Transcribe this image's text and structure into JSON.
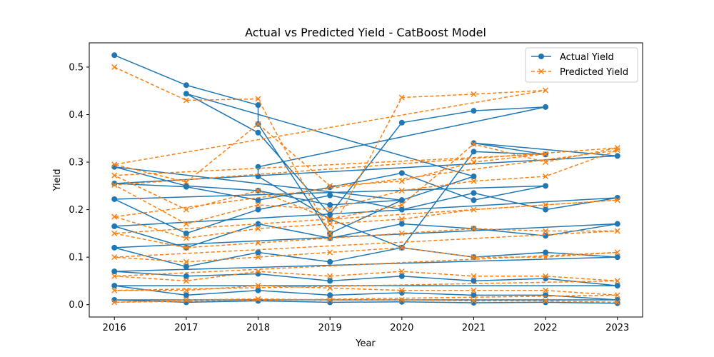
{
  "chart_data": {
    "type": "line",
    "title": "Actual vs Predicted Yield - CatBoost Model",
    "xlabel": "Year",
    "ylabel": "Yield",
    "xlim": [
      2015.65,
      2023.35
    ],
    "ylim": [
      -0.026,
      0.551
    ],
    "x_ticks": [
      "2016",
      "2017",
      "2018",
      "2019",
      "2020",
      "2021",
      "2022",
      "2023"
    ],
    "y_ticks": [
      "0.0",
      "0.1",
      "0.2",
      "0.3",
      "0.4",
      "0.5"
    ],
    "grid": false,
    "legend_position": "top-right",
    "series": [
      {
        "name": "Actual Yield",
        "color": "#1f77b4",
        "marker": "circle",
        "linestyle": "solid",
        "points": [
          [
            2016,
            0.525
          ],
          [
            2017,
            0.462
          ],
          [
            2018,
            0.42
          ],
          [
            2018,
            0.38
          ],
          [
            2019,
            0.15
          ],
          [
            2020,
            0.22
          ],
          [
            2016,
            0.29
          ],
          [
            2017,
            0.25
          ],
          [
            2018,
            0.24
          ],
          [
            2019,
            0.21
          ],
          [
            2020,
            0.22
          ],
          [
            2021,
            0.27
          ],
          [
            2017,
            0.444
          ],
          [
            2018,
            0.362
          ],
          [
            2019,
            0.19
          ],
          [
            2020,
            0.383
          ],
          [
            2021,
            0.408
          ],
          [
            2022,
            0.416
          ],
          [
            2018,
            0.29
          ],
          [
            2018,
            0.27
          ],
          [
            2019,
            0.18
          ],
          [
            2020,
            0.12
          ],
          [
            2021,
            0.322
          ],
          [
            2022,
            0.316
          ],
          [
            2021,
            0.34
          ],
          [
            2023,
            0.313
          ],
          [
            2016,
            0.255
          ],
          [
            2017,
            0.248
          ],
          [
            2018,
            0.22
          ],
          [
            2019,
            0.247
          ],
          [
            2020,
            0.277
          ],
          [
            2021,
            0.22
          ],
          [
            2022,
            0.25
          ],
          [
            2016,
            0.222
          ],
          [
            2017,
            0.15
          ],
          [
            2018,
            0.2
          ],
          [
            2019,
            0.23
          ],
          [
            2020,
            0.2
          ],
          [
            2021,
            0.235
          ],
          [
            2022,
            0.2
          ],
          [
            2023,
            0.225
          ],
          [
            2016,
            0.165
          ],
          [
            2017,
            0.12
          ],
          [
            2018,
            0.17
          ],
          [
            2019,
            0.14
          ],
          [
            2020,
            0.17
          ],
          [
            2021,
            0.16
          ],
          [
            2022,
            0.145
          ],
          [
            2023,
            0.17
          ],
          [
            2016,
            0.12
          ],
          [
            2017,
            0.08
          ],
          [
            2018,
            0.11
          ],
          [
            2019,
            0.09
          ],
          [
            2020,
            0.12
          ],
          [
            2021,
            0.1
          ],
          [
            2022,
            0.11
          ],
          [
            2023,
            0.1
          ],
          [
            2016,
            0.07
          ],
          [
            2017,
            0.06
          ],
          [
            2018,
            0.065
          ],
          [
            2019,
            0.05
          ],
          [
            2020,
            0.06
          ],
          [
            2021,
            0.05
          ],
          [
            2022,
            0.055
          ],
          [
            2023,
            0.04
          ],
          [
            2016,
            0.04
          ],
          [
            2017,
            0.02
          ],
          [
            2018,
            0.03
          ],
          [
            2019,
            0.02
          ],
          [
            2020,
            0.025
          ],
          [
            2021,
            0.02
          ],
          [
            2022,
            0.02
          ],
          [
            2023,
            0.01
          ],
          [
            2016,
            0.01
          ],
          [
            2017,
            0.005
          ],
          [
            2018,
            0.008
          ],
          [
            2019,
            0.005
          ],
          [
            2020,
            0.006
          ],
          [
            2021,
            0.004
          ],
          [
            2022,
            0.005
          ],
          [
            2023,
            0.003
          ]
        ]
      },
      {
        "name": "Predicted Yield",
        "color": "#ff7f0e",
        "marker": "x",
        "linestyle": "dashed",
        "points": [
          [
            2016,
            0.5
          ],
          [
            2017,
            0.43
          ],
          [
            2018,
            0.433
          ],
          [
            2019,
            0.15
          ],
          [
            2020,
            0.436
          ],
          [
            2021,
            0.443
          ],
          [
            2022,
            0.451
          ],
          [
            2016,
            0.295
          ],
          [
            2017,
            0.258
          ],
          [
            2018,
            0.38
          ],
          [
            2019,
            0.25
          ],
          [
            2020,
            0.26
          ],
          [
            2021,
            0.3
          ],
          [
            2022,
            0.317
          ],
          [
            2016,
            0.272
          ],
          [
            2017,
            0.2
          ],
          [
            2018,
            0.24
          ],
          [
            2019,
            0.18
          ],
          [
            2020,
            0.21
          ],
          [
            2021,
            0.338
          ],
          [
            2022,
            0.3
          ],
          [
            2023,
            0.33
          ],
          [
            2016,
            0.252
          ],
          [
            2017,
            0.17
          ],
          [
            2018,
            0.21
          ],
          [
            2019,
            0.2
          ],
          [
            2020,
            0.24
          ],
          [
            2021,
            0.26
          ],
          [
            2022,
            0.27
          ],
          [
            2023,
            0.325
          ],
          [
            2016,
            0.185
          ],
          [
            2017,
            0.14
          ],
          [
            2018,
            0.16
          ],
          [
            2019,
            0.17
          ],
          [
            2020,
            0.18
          ],
          [
            2021,
            0.2
          ],
          [
            2022,
            0.21
          ],
          [
            2023,
            0.22
          ],
          [
            2016,
            0.15
          ],
          [
            2017,
            0.12
          ],
          [
            2018,
            0.13
          ],
          [
            2019,
            0.14
          ],
          [
            2020,
            0.15
          ],
          [
            2021,
            0.16
          ],
          [
            2022,
            0.155
          ],
          [
            2023,
            0.155
          ],
          [
            2016,
            0.1
          ],
          [
            2017,
            0.09
          ],
          [
            2018,
            0.1
          ],
          [
            2019,
            0.11
          ],
          [
            2020,
            0.12
          ],
          [
            2021,
            0.1
          ],
          [
            2022,
            0.1
          ],
          [
            2023,
            0.11
          ],
          [
            2016,
            0.06
          ],
          [
            2017,
            0.05
          ],
          [
            2018,
            0.07
          ],
          [
            2019,
            0.06
          ],
          [
            2020,
            0.07
          ],
          [
            2021,
            0.06
          ],
          [
            2022,
            0.06
          ],
          [
            2023,
            0.05
          ],
          [
            2016,
            0.03
          ],
          [
            2017,
            0.03
          ],
          [
            2018,
            0.04
          ],
          [
            2019,
            0.035
          ],
          [
            2020,
            0.03
          ],
          [
            2021,
            0.03
          ],
          [
            2022,
            0.03
          ],
          [
            2023,
            0.02
          ],
          [
            2016,
            0.005
          ],
          [
            2017,
            0.01
          ],
          [
            2018,
            0.012
          ],
          [
            2019,
            0.01
          ],
          [
            2020,
            0.01
          ],
          [
            2021,
            0.008
          ],
          [
            2022,
            0.008
          ],
          [
            2023,
            0.005
          ]
        ]
      }
    ]
  }
}
